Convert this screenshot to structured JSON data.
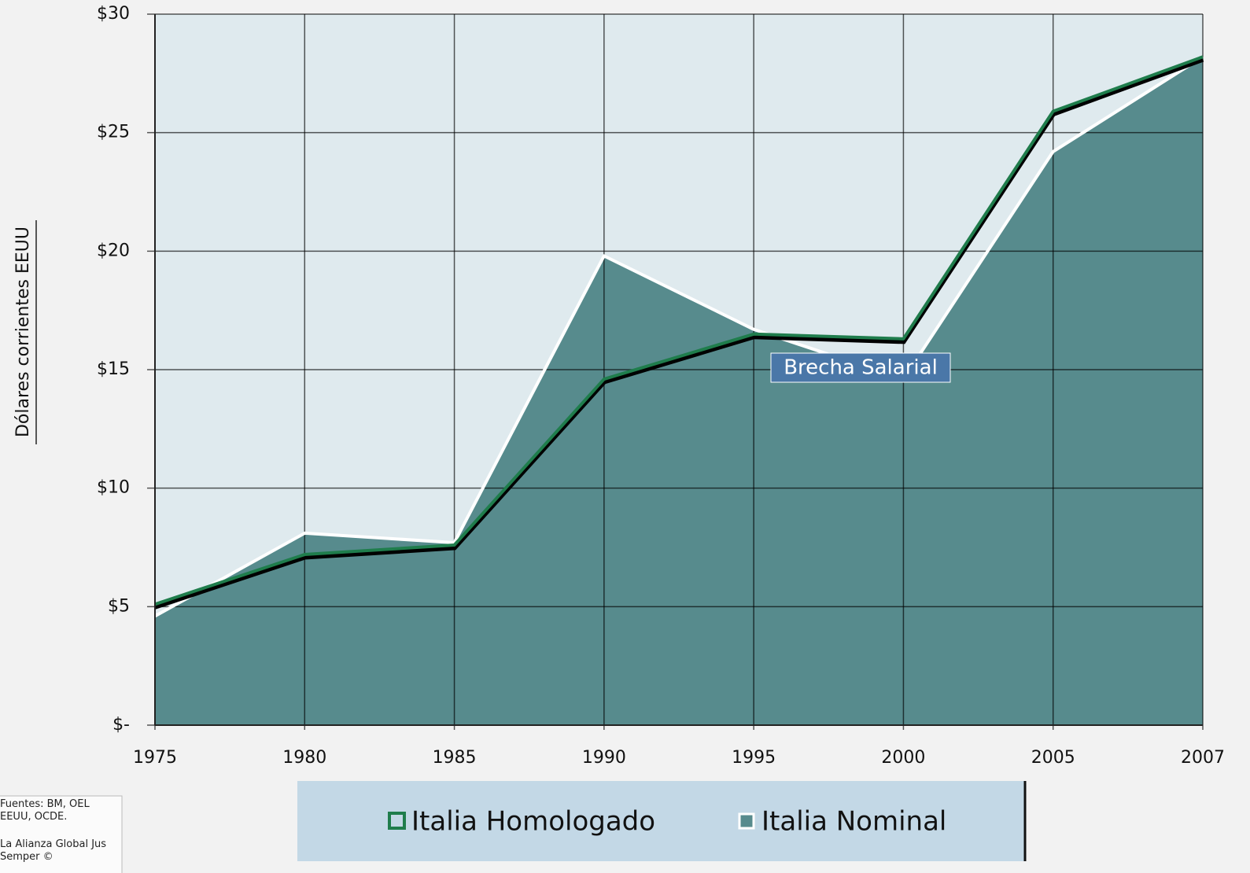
{
  "chart_data": {
    "type": "line",
    "ylabel": "Dólares corrientes EEUU",
    "annotation": "Brecha Salarial",
    "source": "Fuentes: BM, OEL EEUU, OCDE.",
    "credit": "La Alianza Global Jus Semper ©",
    "categories": [
      "1975",
      "1980",
      "1985",
      "1990",
      "1995",
      "2000",
      "2005",
      "2007"
    ],
    "series": [
      {
        "name": "Italia Nominal",
        "color": "#ffffff",
        "fill": "#578b8d",
        "area": true,
        "values": [
          4.6,
          8.1,
          7.7,
          19.8,
          16.7,
          14.6,
          24.2,
          28.2
        ]
      },
      {
        "name": "Italia Homologado",
        "color": "#1f7d4c",
        "area": false,
        "values": [
          5.1,
          7.2,
          7.6,
          14.6,
          16.5,
          16.3,
          25.9,
          28.2
        ]
      }
    ],
    "ylim": [
      0,
      30
    ],
    "yticks": [
      {
        "value": 0,
        "label": "$-"
      },
      {
        "value": 5,
        "label": "$5"
      },
      {
        "value": 10,
        "label": "$10"
      },
      {
        "value": 15,
        "label": "$15"
      },
      {
        "value": 20,
        "label": "$20"
      },
      {
        "value": 25,
        "label": "$25"
      },
      {
        "value": 30,
        "label": "$30"
      }
    ],
    "grid": true
  }
}
